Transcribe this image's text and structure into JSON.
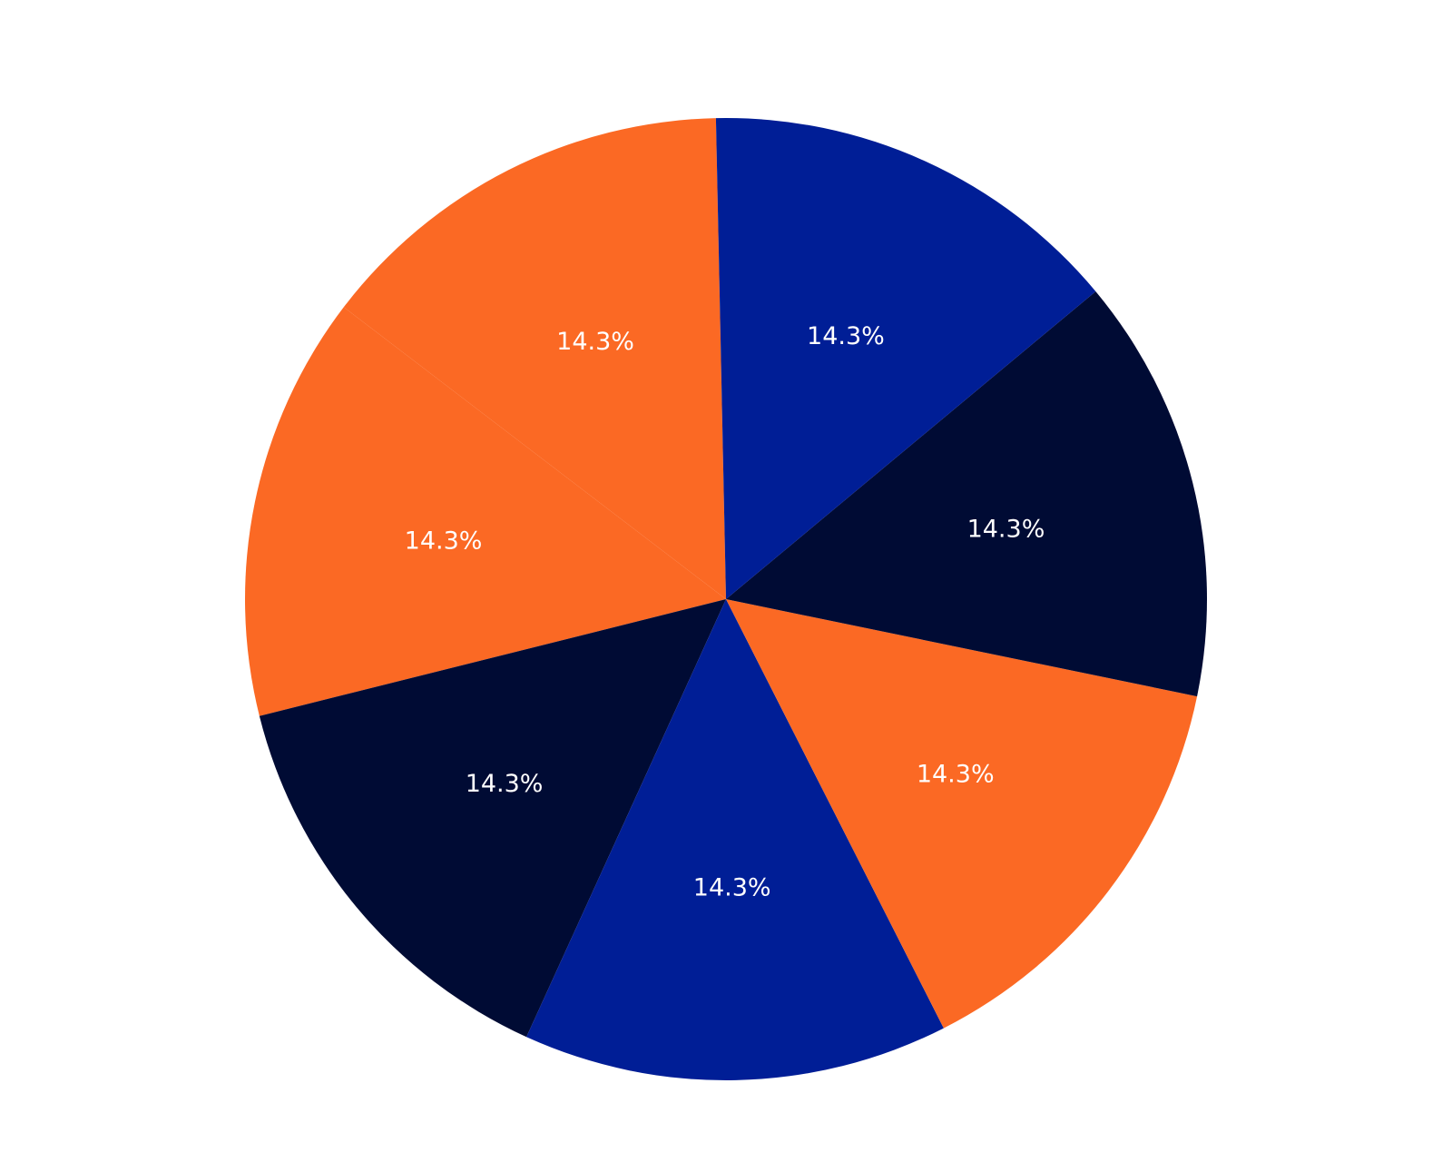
{
  "chart_data": {
    "type": "pie",
    "title": "",
    "start_angle_deg": 91.2,
    "direction": "counterclockwise",
    "slices": [
      {
        "value": 1,
        "label": "14.3%",
        "color": "#fb6924"
      },
      {
        "value": 1,
        "label": "14.3%",
        "color": "#fb6924"
      },
      {
        "value": 1,
        "label": "14.3%",
        "color": "#000b34"
      },
      {
        "value": 1,
        "label": "14.3%",
        "color": "#001e96"
      },
      {
        "value": 1,
        "label": "14.3%",
        "color": "#fb6924"
      },
      {
        "value": 1,
        "label": "14.3%",
        "color": "#000b34"
      },
      {
        "value": 1,
        "label": "14.3%",
        "color": "#001e96"
      }
    ],
    "legend": "none"
  }
}
